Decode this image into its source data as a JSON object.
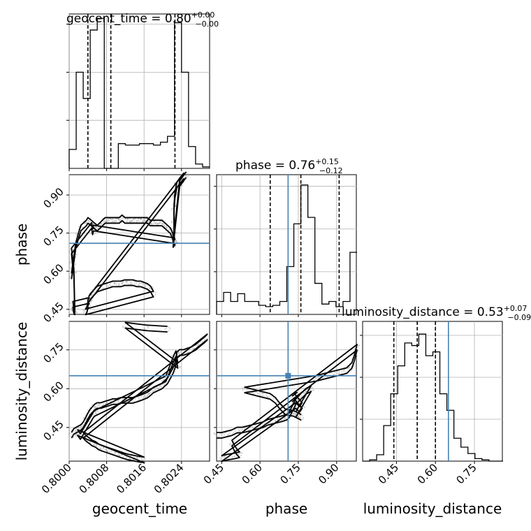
{
  "colors": {
    "truth": "#4682b4",
    "hist": "#000000",
    "grid": "#b0b0b0",
    "density": "#888888"
  },
  "chart_data": {
    "type": "corner",
    "parameters": [
      "geocent_time",
      "phase",
      "luminosity_distance"
    ],
    "truth": {
      "geocent_time": null,
      "phase": 0.71,
      "luminosity_distance": 0.65
    },
    "titles": [
      {
        "param": "geocent_time",
        "text": "geocent_time = 0.80",
        "plus": "+0.00",
        "minus": "−0.00"
      },
      {
        "param": "phase",
        "text": "phase = 0.76",
        "plus": "+0.15",
        "minus": "−0.12"
      },
      {
        "param": "luminosity_distance",
        "text": "luminosity_distance = 0.53",
        "plus": "+0.07",
        "minus": "−0.09"
      }
    ],
    "axes": {
      "geocent_time": {
        "range": [
          0.8,
          0.803
        ],
        "ticks": [
          "0.8000",
          "0.8008",
          "0.8016",
          "0.8024"
        ],
        "tick_values": [
          0.8,
          0.8008,
          0.8016,
          0.8024
        ]
      },
      "phase": {
        "range": [
          0.43,
          0.98
        ],
        "ticks": [
          "0.45",
          "0.60",
          "0.75",
          "0.90"
        ],
        "tick_values": [
          0.45,
          0.6,
          0.75,
          0.9
        ]
      },
      "luminosity_distance": {
        "range": [
          0.32,
          0.86
        ],
        "ticks": [
          "0.45",
          "0.60",
          "0.75"
        ],
        "tick_values": [
          0.45,
          0.6,
          0.75
        ]
      }
    },
    "diag_hists": [
      {
        "param": "geocent_time",
        "bins": [
          0.8,
          0.80015,
          0.8003,
          0.80045,
          0.8006,
          0.80075,
          0.8009,
          0.80105,
          0.8012,
          0.80135,
          0.8015,
          0.80165,
          0.8018,
          0.80195,
          0.8021,
          0.80225,
          0.8024,
          0.80255,
          0.8027,
          0.80285,
          0.803
        ],
        "counts": [
          0.13,
          0.66,
          0.48,
          0.95,
          1.03,
          0.0,
          0.0,
          0.17,
          0.16,
          0.16,
          0.17,
          0.17,
          0.16,
          0.18,
          0.22,
          1.0,
          0.66,
          0.15,
          0.03,
          0.01
        ],
        "quantiles": [
          0.8004,
          0.80089,
          0.80226
        ],
        "ymax": 1.06
      },
      {
        "param": "phase",
        "bins": [
          0.43,
          0.4575,
          0.485,
          0.5125,
          0.54,
          0.5675,
          0.595,
          0.6225,
          0.65,
          0.6775,
          0.705,
          0.7325,
          0.76,
          0.7875,
          0.815,
          0.8425,
          0.87,
          0.8975,
          0.925,
          0.9525,
          0.98
        ],
        "counts": [
          0.1,
          0.17,
          0.1,
          0.16,
          0.1,
          0.1,
          0.07,
          0.06,
          0.07,
          0.1,
          0.37,
          0.7,
          1.0,
          0.75,
          0.24,
          0.08,
          0.1,
          0.06,
          0.1,
          0.48
        ],
        "quantiles": [
          0.64,
          0.76,
          0.91
        ],
        "truth": 0.71,
        "ymax": 1.08
      },
      {
        "param": "luminosity_distance",
        "bins": [
          0.32,
          0.347,
          0.374,
          0.401,
          0.428,
          0.455,
          0.482,
          0.509,
          0.536,
          0.563,
          0.59,
          0.617,
          0.644,
          0.671,
          0.698,
          0.725,
          0.752,
          0.779,
          0.806,
          0.833,
          0.86
        ],
        "counts": [
          0.0,
          0.01,
          0.05,
          0.28,
          0.53,
          0.75,
          0.93,
          0.91,
          1.0,
          0.83,
          0.86,
          0.53,
          0.4,
          0.18,
          0.11,
          0.06,
          0.02,
          0.01,
          0.0,
          0.0
        ],
        "quantiles": [
          0.44,
          0.53,
          0.6
        ],
        "truth": 0.65,
        "ymax": 1.1
      }
    ],
    "scatter_2d": [
      {
        "x": "geocent_time",
        "y": "phase",
        "points": [
          [
            0.80005,
            0.58
          ],
          [
            0.80008,
            0.62
          ],
          [
            0.80011,
            0.66
          ],
          [
            0.80014,
            0.7
          ],
          [
            0.8002,
            0.74
          ],
          [
            0.80025,
            0.77
          ],
          [
            0.80031,
            0.78
          ],
          [
            0.80037,
            0.79
          ],
          [
            0.8004,
            0.8
          ],
          [
            0.80047,
            0.79
          ],
          [
            0.80053,
            0.78
          ],
          [
            0.8006,
            0.77
          ],
          [
            0.80066,
            0.78
          ],
          [
            0.80071,
            0.79
          ],
          [
            0.80077,
            0.8
          ],
          [
            0.80083,
            0.8
          ],
          [
            0.80089,
            0.8
          ],
          [
            0.80095,
            0.8
          ],
          [
            0.80101,
            0.8
          ],
          [
            0.80107,
            0.8
          ],
          [
            0.80113,
            0.81
          ],
          [
            0.80119,
            0.8
          ],
          [
            0.80125,
            0.8
          ],
          [
            0.8013,
            0.8
          ],
          [
            0.80136,
            0.8
          ],
          [
            0.80143,
            0.8
          ],
          [
            0.80149,
            0.8
          ],
          [
            0.80155,
            0.8
          ],
          [
            0.80161,
            0.8
          ],
          [
            0.80167,
            0.8
          ],
          [
            0.80173,
            0.79
          ],
          [
            0.80179,
            0.79
          ],
          [
            0.80186,
            0.79
          ],
          [
            0.80192,
            0.79
          ],
          [
            0.80198,
            0.79
          ],
          [
            0.80204,
            0.78
          ],
          [
            0.8021,
            0.77
          ],
          [
            0.80216,
            0.76
          ],
          [
            0.80221,
            0.74
          ],
          [
            0.80223,
            0.72
          ],
          [
            0.80224,
            0.75
          ],
          [
            0.80224,
            0.8
          ],
          [
            0.80224,
            0.85
          ],
          [
            0.80226,
            0.9
          ],
          [
            0.8023,
            0.94
          ],
          [
            0.80238,
            0.96
          ],
          [
            0.80245,
            0.975
          ],
          [
            0.80042,
            0.49
          ],
          [
            0.80045,
            0.5
          ],
          [
            0.8005,
            0.51
          ],
          [
            0.80055,
            0.52
          ],
          [
            0.8006,
            0.53
          ],
          [
            0.80068,
            0.535
          ],
          [
            0.80076,
            0.54
          ],
          [
            0.80085,
            0.545
          ],
          [
            0.80093,
            0.55
          ],
          [
            0.80101,
            0.55
          ],
          [
            0.8011,
            0.55
          ],
          [
            0.80119,
            0.555
          ],
          [
            0.80127,
            0.555
          ],
          [
            0.80136,
            0.555
          ],
          [
            0.80145,
            0.55
          ],
          [
            0.80153,
            0.55
          ],
          [
            0.8016,
            0.545
          ],
          [
            0.80167,
            0.54
          ],
          [
            0.80174,
            0.53
          ],
          [
            0.8018,
            0.51
          ],
          [
            0.80035,
            0.44
          ],
          [
            0.80038,
            0.45
          ],
          [
            0.8004,
            0.465
          ],
          [
            0.8004,
            0.475
          ],
          [
            0.80043,
            0.485
          ],
          [
            0.80008,
            0.47
          ],
          [
            0.80009,
            0.455
          ],
          [
            0.8001,
            0.445
          ],
          [
            0.80012,
            0.44
          ],
          [
            0.8001,
            0.6
          ],
          [
            0.80007,
            0.64
          ],
          [
            0.80005,
            0.68
          ],
          [
            0.80048,
            0.78
          ],
          [
            0.8005,
            0.755
          ],
          [
            0.80052,
            0.77
          ],
          [
            0.80225,
            0.72
          ],
          [
            0.80226,
            0.715
          ],
          [
            0.80222,
            0.705
          ],
          [
            0.80236,
            0.945
          ],
          [
            0.8024,
            0.955
          ],
          [
            0.8025,
            0.98
          ]
        ]
      },
      {
        "x": "geocent_time",
        "y": "luminosity_distance",
        "points": [
          [
            0.80005,
            0.42
          ],
          [
            0.8001,
            0.435
          ],
          [
            0.80015,
            0.44
          ],
          [
            0.8002,
            0.445
          ],
          [
            0.80025,
            0.45
          ],
          [
            0.8003,
            0.46
          ],
          [
            0.80036,
            0.48
          ],
          [
            0.8004,
            0.495
          ],
          [
            0.80045,
            0.51
          ],
          [
            0.8005,
            0.52
          ],
          [
            0.80055,
            0.53
          ],
          [
            0.8006,
            0.535
          ],
          [
            0.80068,
            0.535
          ],
          [
            0.80076,
            0.54
          ],
          [
            0.80085,
            0.545
          ],
          [
            0.80093,
            0.55
          ],
          [
            0.80101,
            0.55
          ],
          [
            0.8011,
            0.555
          ],
          [
            0.80119,
            0.555
          ],
          [
            0.80127,
            0.555
          ],
          [
            0.80136,
            0.555
          ],
          [
            0.80145,
            0.56
          ],
          [
            0.80153,
            0.565
          ],
          [
            0.8016,
            0.57
          ],
          [
            0.80167,
            0.575
          ],
          [
            0.80174,
            0.585
          ],
          [
            0.8018,
            0.595
          ],
          [
            0.80186,
            0.6
          ],
          [
            0.80192,
            0.605
          ],
          [
            0.80198,
            0.61
          ],
          [
            0.80204,
            0.62
          ],
          [
            0.8021,
            0.63
          ],
          [
            0.80216,
            0.65
          ],
          [
            0.80222,
            0.67
          ],
          [
            0.80226,
            0.69
          ],
          [
            0.80229,
            0.71
          ],
          [
            0.8023,
            0.73
          ],
          [
            0.80236,
            0.74
          ],
          [
            0.80244,
            0.74
          ],
          [
            0.80252,
            0.745
          ],
          [
            0.8026,
            0.75
          ],
          [
            0.8027,
            0.76
          ],
          [
            0.8028,
            0.775
          ],
          [
            0.8029,
            0.79
          ],
          [
            0.80295,
            0.8
          ],
          [
            0.8003,
            0.42
          ],
          [
            0.80035,
            0.41
          ],
          [
            0.80042,
            0.4
          ],
          [
            0.80049,
            0.39
          ],
          [
            0.80056,
            0.385
          ],
          [
            0.80063,
            0.375
          ],
          [
            0.8007,
            0.37
          ],
          [
            0.80078,
            0.365
          ],
          [
            0.80086,
            0.36
          ],
          [
            0.80094,
            0.355
          ],
          [
            0.80102,
            0.35
          ],
          [
            0.8011,
            0.345
          ],
          [
            0.80118,
            0.34
          ],
          [
            0.80126,
            0.336
          ],
          [
            0.80134,
            0.333
          ],
          [
            0.80142,
            0.33
          ],
          [
            0.80151,
            0.327
          ],
          [
            0.8016,
            0.325
          ],
          [
            0.80018,
            0.43
          ],
          [
            0.8002,
            0.425
          ],
          [
            0.80024,
            0.415
          ],
          [
            0.80052,
            0.5
          ],
          [
            0.80055,
            0.505
          ],
          [
            0.80203,
            0.635
          ],
          [
            0.80207,
            0.64
          ],
          [
            0.80224,
            0.72
          ],
          [
            0.80228,
            0.735
          ],
          [
            0.80232,
            0.69
          ],
          [
            0.8012,
            0.845
          ],
          [
            0.80165,
            0.835
          ],
          [
            0.8021,
            0.83
          ]
        ]
      },
      {
        "x": "phase",
        "y": "luminosity_distance",
        "points": [
          [
            0.43,
            0.42
          ],
          [
            0.45,
            0.42
          ],
          [
            0.47,
            0.425
          ],
          [
            0.49,
            0.43
          ],
          [
            0.51,
            0.44
          ],
          [
            0.53,
            0.44
          ],
          [
            0.55,
            0.445
          ],
          [
            0.57,
            0.45
          ],
          [
            0.59,
            0.455
          ],
          [
            0.61,
            0.46
          ],
          [
            0.63,
            0.47
          ],
          [
            0.65,
            0.475
          ],
          [
            0.67,
            0.48
          ],
          [
            0.69,
            0.485
          ],
          [
            0.705,
            0.49
          ],
          [
            0.715,
            0.5
          ],
          [
            0.72,
            0.51
          ],
          [
            0.725,
            0.52
          ],
          [
            0.73,
            0.53
          ],
          [
            0.735,
            0.54
          ],
          [
            0.74,
            0.55
          ],
          [
            0.75,
            0.56
          ],
          [
            0.76,
            0.57
          ],
          [
            0.77,
            0.58
          ],
          [
            0.78,
            0.59
          ],
          [
            0.79,
            0.595
          ],
          [
            0.8,
            0.6
          ],
          [
            0.74,
            0.5
          ],
          [
            0.75,
            0.495
          ],
          [
            0.76,
            0.49
          ],
          [
            0.73,
            0.505
          ],
          [
            0.7,
            0.51
          ],
          [
            0.68,
            0.53
          ],
          [
            0.66,
            0.555
          ],
          [
            0.64,
            0.57
          ],
          [
            0.62,
            0.575
          ],
          [
            0.6,
            0.58
          ],
          [
            0.58,
            0.585
          ],
          [
            0.56,
            0.59
          ],
          [
            0.54,
            0.595
          ],
          [
            0.82,
            0.64
          ],
          [
            0.84,
            0.645
          ],
          [
            0.86,
            0.65
          ],
          [
            0.88,
            0.655
          ],
          [
            0.9,
            0.66
          ],
          [
            0.92,
            0.665
          ],
          [
            0.94,
            0.67
          ],
          [
            0.95,
            0.68
          ],
          [
            0.96,
            0.69
          ],
          [
            0.97,
            0.72
          ],
          [
            0.975,
            0.74
          ],
          [
            0.98,
            0.76
          ],
          [
            0.49,
            0.39
          ],
          [
            0.5,
            0.37
          ],
          [
            0.51,
            0.355
          ],
          [
            0.52,
            0.345
          ],
          [
            0.5,
            0.34
          ],
          [
            0.47,
            0.335
          ],
          [
            0.45,
            0.33
          ],
          [
            0.74,
            0.535
          ],
          [
            0.755,
            0.52
          ],
          [
            0.765,
            0.535
          ],
          [
            0.735,
            0.57
          ],
          [
            0.745,
            0.575
          ],
          [
            0.725,
            0.56
          ]
        ]
      }
    ]
  }
}
